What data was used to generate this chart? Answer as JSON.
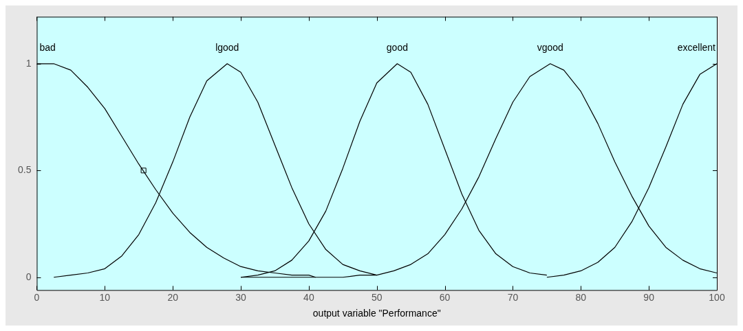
{
  "chart_data": {
    "type": "line",
    "xlabel": "output variable \"Performance\"",
    "xlim": [
      0,
      100
    ],
    "xticks": [
      0,
      10,
      20,
      30,
      40,
      50,
      60,
      70,
      80,
      90,
      100
    ],
    "ylim": [
      -0.06,
      1.22
    ],
    "yticks": [
      0,
      0.5,
      1
    ],
    "grid": false,
    "legend": false,
    "marker": "none",
    "line_style": "solid",
    "series": [
      {
        "name": "bad",
        "color": "#000000",
        "x": [
          0,
          2.5,
          5,
          7.5,
          10,
          12.5,
          15,
          17.5,
          20,
          22.5,
          25,
          27.5,
          30,
          32.5,
          35,
          37.5,
          40,
          41
        ],
        "values": [
          1,
          1,
          0.97,
          0.89,
          0.79,
          0.66,
          0.53,
          0.41,
          0.3,
          0.21,
          0.14,
          0.09,
          0.05,
          0.03,
          0.02,
          0.01,
          0.01,
          0
        ]
      },
      {
        "name": "lgood",
        "color": "#000000",
        "x": [
          2.5,
          5,
          7.5,
          10,
          12.5,
          15,
          17.5,
          20,
          22.5,
          25,
          28,
          30,
          32.5,
          35,
          37.5,
          40,
          42.5,
          45,
          47.5,
          50
        ],
        "values": [
          0,
          0.01,
          0.02,
          0.04,
          0.1,
          0.2,
          0.35,
          0.54,
          0.75,
          0.92,
          1,
          0.96,
          0.82,
          0.62,
          0.42,
          0.25,
          0.13,
          0.06,
          0.03,
          0.01
        ]
      },
      {
        "name": "good",
        "color": "#000000",
        "x": [
          30,
          32.5,
          35,
          37.5,
          40,
          42.5,
          45,
          47.5,
          50,
          53,
          55,
          57.5,
          60,
          62.5,
          65,
          67.5,
          70,
          72.5,
          75
        ],
        "values": [
          0,
          0.01,
          0.03,
          0.08,
          0.17,
          0.31,
          0.51,
          0.73,
          0.91,
          1,
          0.96,
          0.81,
          0.6,
          0.39,
          0.22,
          0.11,
          0.05,
          0.02,
          0.01
        ]
      },
      {
        "name": "vgood",
        "color": "#000000",
        "x": [
          30,
          40,
          45,
          47.5,
          50,
          52.5,
          55,
          57.5,
          60,
          62.5,
          65,
          67.5,
          70,
          72.5,
          75.5,
          77.5,
          80,
          82.5,
          85,
          87.5,
          90,
          92.5,
          95,
          97.5,
          100
        ],
        "values": [
          0,
          0,
          0,
          0.01,
          0.01,
          0.03,
          0.06,
          0.11,
          0.2,
          0.32,
          0.47,
          0.65,
          0.82,
          0.94,
          1,
          0.97,
          0.87,
          0.72,
          0.54,
          0.38,
          0.24,
          0.14,
          0.08,
          0.04,
          0.02
        ]
      },
      {
        "name": "excellent",
        "color": "#000000",
        "x": [
          75,
          77.5,
          80,
          82.5,
          85,
          87.5,
          90,
          92.5,
          95,
          97.5,
          100
        ],
        "values": [
          0,
          0.01,
          0.03,
          0.07,
          0.14,
          0.26,
          0.42,
          0.61,
          0.81,
          0.95,
          1
        ]
      },
      {
        "type": "scatter",
        "marker": "square",
        "color": "#000000",
        "x": [
          15.7
        ],
        "values": [
          0.5
        ]
      }
    ]
  }
}
